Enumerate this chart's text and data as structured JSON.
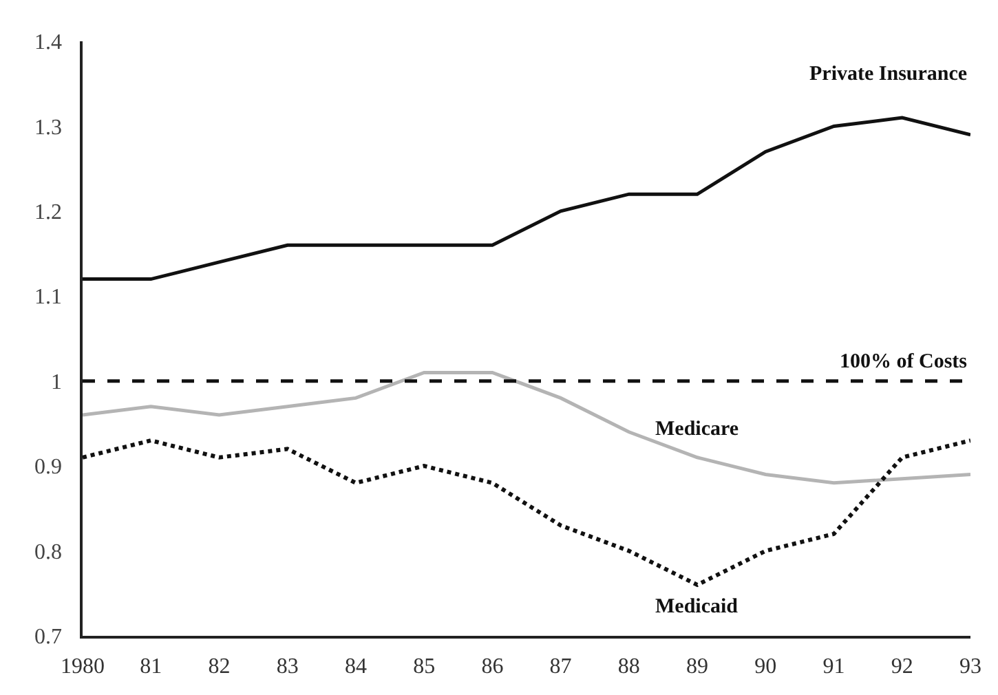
{
  "chart_data": {
    "type": "line",
    "x": [
      1980,
      1981,
      1982,
      1983,
      1984,
      1985,
      1986,
      1987,
      1988,
      1989,
      1990,
      1991,
      1992,
      1993
    ],
    "series": [
      {
        "name": "Private Insurance",
        "color": "#111111",
        "line_style": "solid",
        "values": [
          1.12,
          1.12,
          1.14,
          1.16,
          1.16,
          1.16,
          1.16,
          1.2,
          1.22,
          1.22,
          1.27,
          1.3,
          1.31,
          1.29
        ]
      },
      {
        "name": "Medicare",
        "color": "#b4b4b4",
        "line_style": "solid",
        "values": [
          0.96,
          0.97,
          0.96,
          0.97,
          0.98,
          1.01,
          1.01,
          0.98,
          0.94,
          0.91,
          0.89,
          0.88,
          0.885,
          0.89
        ]
      },
      {
        "name": "Medicaid",
        "color": "#111111",
        "line_style": "dotted",
        "values": [
          0.91,
          0.93,
          0.91,
          0.92,
          0.88,
          0.9,
          0.88,
          0.83,
          0.8,
          0.76,
          0.8,
          0.82,
          0.91,
          0.93
        ]
      }
    ],
    "xlim": [
      1980,
      1993
    ],
    "xticks": [
      {
        "value": 1980,
        "label": "1980"
      },
      {
        "value": 1981,
        "label": "81"
      },
      {
        "value": 1982,
        "label": "82"
      },
      {
        "value": 1983,
        "label": "83"
      },
      {
        "value": 1984,
        "label": "84"
      },
      {
        "value": 1985,
        "label": "85"
      },
      {
        "value": 1986,
        "label": "86"
      },
      {
        "value": 1987,
        "label": "87"
      },
      {
        "value": 1988,
        "label": "88"
      },
      {
        "value": 1989,
        "label": "89"
      },
      {
        "value": 1990,
        "label": "90"
      },
      {
        "value": 1991,
        "label": "91"
      },
      {
        "value": 1992,
        "label": "92"
      },
      {
        "value": 1993,
        "label": "93"
      }
    ],
    "ylim": [
      0.7,
      1.4
    ],
    "yticks": [
      0.7,
      0.8,
      0.9,
      1,
      1.1,
      1.2,
      1.3,
      1.4
    ],
    "ref_lines": [
      {
        "axis": "y",
        "value": 1,
        "label": "100% of Costs",
        "color": "#111111",
        "line_style": "dashed"
      }
    ],
    "legend": false,
    "marker": "none"
  }
}
